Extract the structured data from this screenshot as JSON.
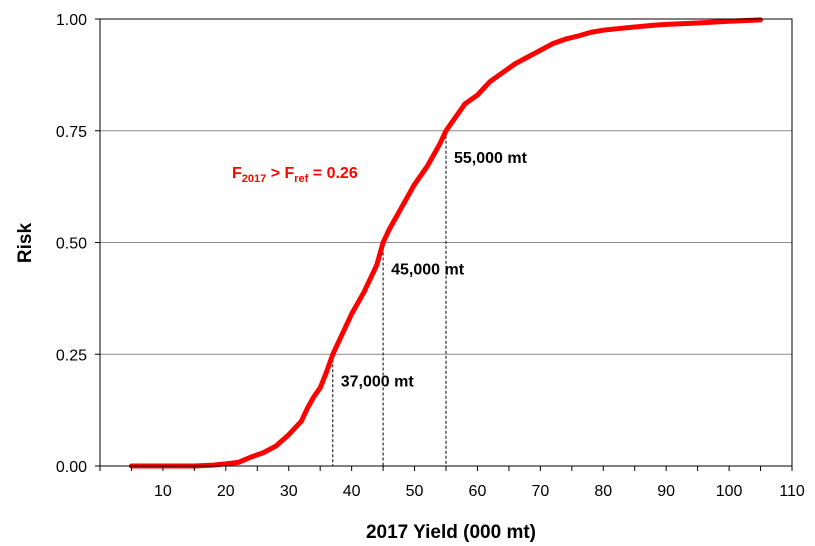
{
  "chart_data": {
    "type": "line",
    "xlabel": "2017 Yield (000 mt)",
    "ylabel": "Risk",
    "xlim": [
      0,
      110
    ],
    "ylim": [
      0,
      1
    ],
    "x_ticks": [
      "10",
      "20",
      "30",
      "40",
      "50",
      "60",
      "70",
      "80",
      "90",
      "100",
      "110"
    ],
    "x_tick_values": [
      10,
      20,
      30,
      40,
      50,
      60,
      70,
      80,
      90,
      100,
      110
    ],
    "y_ticks": [
      "0.00",
      "0.25",
      "0.50",
      "0.75",
      "1.00"
    ],
    "y_tick_values": [
      0,
      0.25,
      0.5,
      0.75,
      1.0
    ],
    "grid": "horizontal",
    "line_color": "#ff0000",
    "series": [
      {
        "x": [
          5,
          10,
          15,
          18,
          20,
          22,
          24,
          26,
          28,
          30,
          32,
          33,
          34,
          35,
          36,
          37,
          38,
          40,
          42,
          44,
          45,
          46,
          48,
          50,
          52,
          54,
          55,
          56,
          58,
          60,
          62,
          64,
          66,
          68,
          70,
          72,
          74,
          76,
          78,
          80,
          82,
          85,
          88,
          90,
          95,
          100,
          105
        ],
        "y": [
          0.0,
          0.0,
          0.0,
          0.002,
          0.005,
          0.008,
          0.02,
          0.03,
          0.045,
          0.07,
          0.1,
          0.13,
          0.155,
          0.175,
          0.21,
          0.25,
          0.28,
          0.34,
          0.39,
          0.45,
          0.5,
          0.53,
          0.58,
          0.63,
          0.67,
          0.72,
          0.75,
          0.77,
          0.81,
          0.83,
          0.86,
          0.88,
          0.9,
          0.915,
          0.93,
          0.945,
          0.955,
          0.962,
          0.97,
          0.975,
          0.978,
          0.982,
          0.986,
          0.988,
          0.991,
          0.995,
          0.998
        ]
      }
    ],
    "annotations": {
      "f_text": {
        "main": "F",
        "sub1": "2017",
        "middle": " > F",
        "sub2": "ref",
        "end": " =  0.26",
        "color": "#ff0000"
      },
      "markers": [
        {
          "label": "37,000 mt",
          "x": 37,
          "y": 0.25
        },
        {
          "label": "45,000 mt",
          "x": 45,
          "y": 0.5
        },
        {
          "label": "55,000 mt",
          "x": 55,
          "y": 0.75
        }
      ]
    }
  }
}
